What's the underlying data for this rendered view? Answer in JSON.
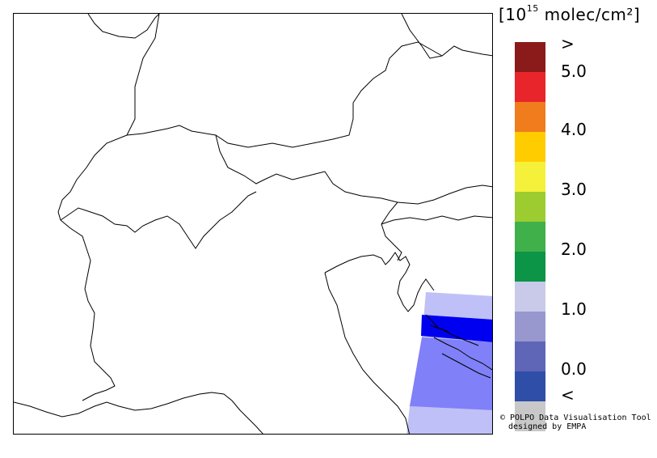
{
  "colorbar": {
    "unit_prefix": "[10",
    "unit_exponent": "15",
    "unit_suffix": " molec/cm²]",
    "labels": [
      ">",
      "5.0",
      "4.0",
      "3.0",
      "2.0",
      "1.0",
      "0.0",
      "<"
    ],
    "colors": [
      "#8b1a1a",
      "#e8252a",
      "#f07c1e",
      "#ffcc00",
      "#f5f03a",
      "#9ccc30",
      "#3fb04a",
      "#0c9447",
      "#c9c9ea",
      "#9898cf",
      "#5f66b8",
      "#2f4ea8",
      "#c8c8c8"
    ]
  },
  "data_colors": {
    "light_blue": "#c0c0f8",
    "mid_blue": "#8080f8",
    "dark_blue": "#0000f0"
  },
  "credit": {
    "line1": "© POLPO Data Visualisation Tool",
    "line2": "designed by EMPA"
  }
}
